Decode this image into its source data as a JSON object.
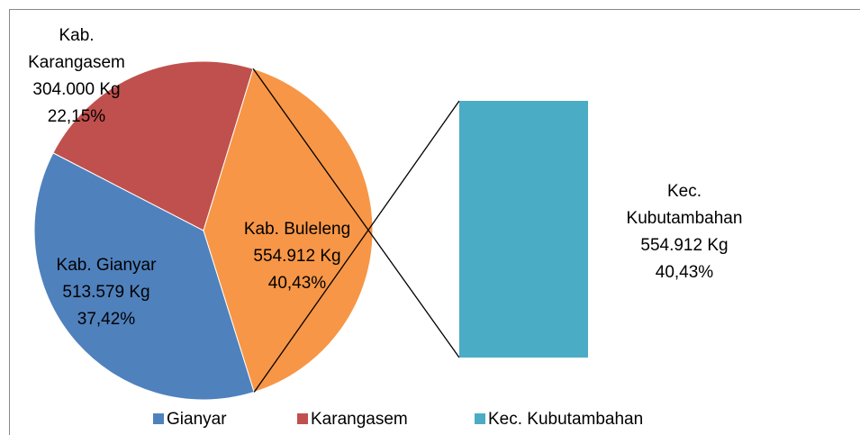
{
  "chart_data": {
    "type": "pie-of-bar",
    "slices": [
      {
        "name": "Gianyar",
        "label": "Kab. Gianyar",
        "value": 513579,
        "value_label": "513.579  Kg",
        "percent": 37.42,
        "percent_label": "37,42%",
        "color": "#4f81bd"
      },
      {
        "name": "Karangasem",
        "label": "Kab. Karangasem",
        "value": 304000,
        "value_label": "304.000 Kg",
        "percent": 22.15,
        "percent_label": "22,15%",
        "color": "#c0504d"
      },
      {
        "label": "Kab. Buleleng",
        "value": 554912,
        "value_label": "554.912 Kg",
        "percent": 40.43,
        "percent_label": "40,43%",
        "color": "#f79646"
      }
    ],
    "bar": {
      "name": "Kec. Kubutambahan",
      "value": 554912,
      "value_label": "554.912 Kg",
      "percent": 40.43,
      "percent_label": "40,43%",
      "color": "#4bacc6"
    }
  }
}
